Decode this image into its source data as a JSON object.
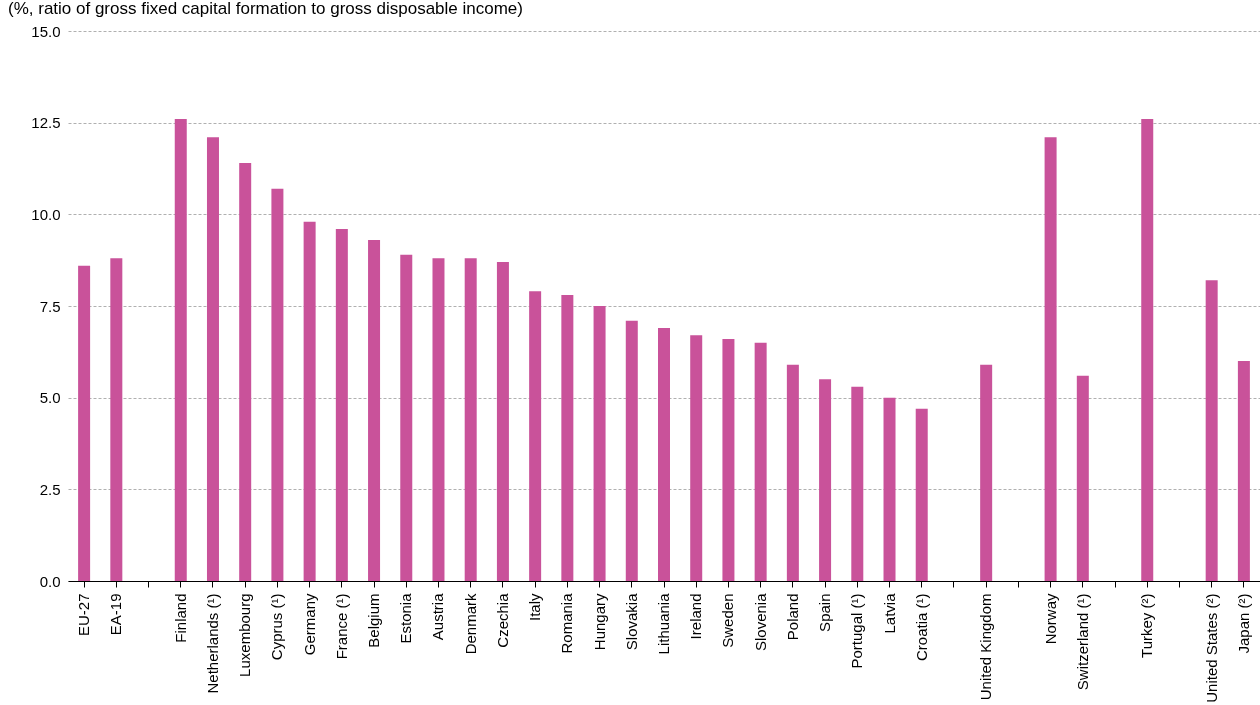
{
  "chart_data": {
    "type": "bar",
    "title": "(%, ratio of gross fixed capital formation to gross disposable income)",
    "categories": [
      "EU-27",
      "EA-19",
      null,
      "Finland",
      "Netherlands (¹)",
      "Luxembourg",
      "Cyprus (¹)",
      "Germany",
      "France (¹)",
      "Belgium",
      "Estonia",
      "Austria",
      "Denmark",
      "Czechia",
      "Italy",
      "Romania",
      "Hungary",
      "Slovakia",
      "Lithuania",
      "Ireland",
      "Sweden",
      "Slovenia",
      "Poland",
      "Spain",
      "Portugal (¹)",
      "Latvia",
      "Croatia (¹)",
      null,
      "United Kingdom",
      null,
      "Norway",
      "Switzerland (¹)",
      null,
      "Turkey (²)",
      null,
      "United States (²)",
      "Japan (²)"
    ],
    "values": [
      8.6,
      8.8,
      null,
      12.6,
      12.1,
      11.4,
      10.7,
      9.8,
      9.6,
      9.3,
      8.9,
      8.8,
      8.8,
      8.7,
      7.9,
      7.8,
      7.5,
      7.1,
      6.9,
      6.7,
      6.6,
      6.5,
      5.9,
      5.5,
      5.3,
      5.0,
      4.7,
      null,
      5.9,
      null,
      12.1,
      5.6,
      null,
      12.6,
      null,
      8.2,
      6.0
    ],
    "color": "#c9529a",
    "ylim": [
      0,
      15
    ],
    "yticks": [
      {
        "value": 0,
        "label": "0.0"
      },
      {
        "value": 2.5,
        "label": "2.5"
      },
      {
        "value": 5,
        "label": "5.0"
      },
      {
        "value": 7.5,
        "label": "7.5"
      },
      {
        "value": 10,
        "label": "10.0"
      },
      {
        "value": 12.5,
        "label": "12.5"
      },
      {
        "value": 15,
        "label": "15.0"
      }
    ],
    "grid": "y"
  }
}
